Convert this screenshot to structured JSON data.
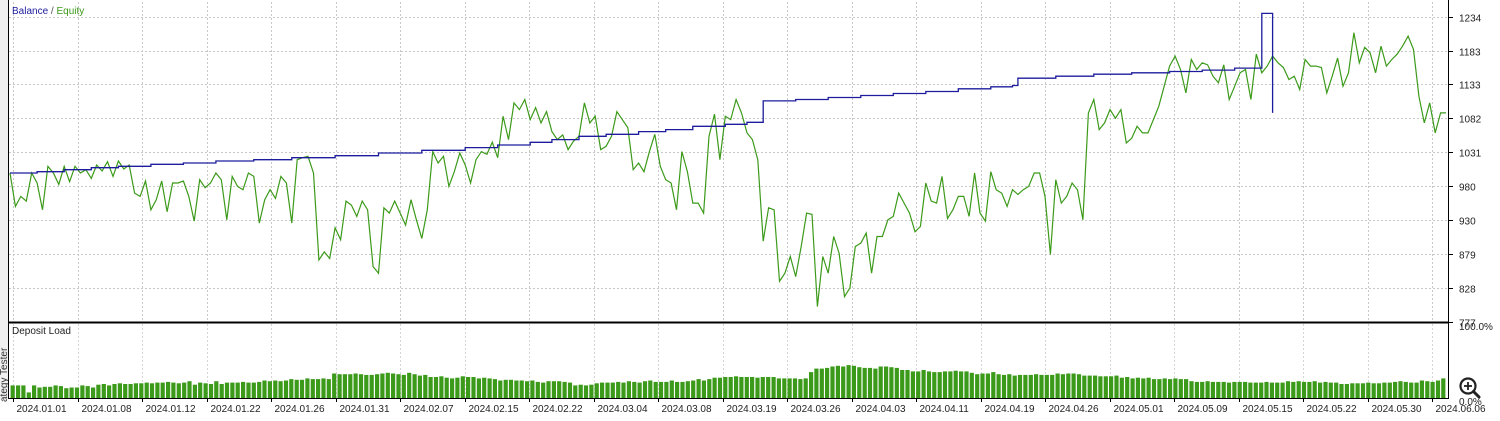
{
  "tester": {
    "side_label": "ategy Tester"
  },
  "toolbar": {
    "zoom_icon": "zoom-in-magnifier-icon"
  },
  "chart_data": [
    {
      "type": "line",
      "title": "",
      "legend": {
        "labels": [
          "Balance",
          "Equity"
        ],
        "separator": " / ",
        "position": "top-left"
      },
      "xlabel": "",
      "ylabel": "",
      "ylim": [
        777,
        1256
      ],
      "grid": true,
      "yticks": [
        1234,
        1183,
        1133,
        1082,
        1031,
        980,
        930,
        879,
        828,
        777
      ],
      "xticks": [
        "2024.01.01",
        "2024.01.08",
        "2024.01.12",
        "2024.01.22",
        "2024.01.26",
        "2024.01.31",
        "2024.02.07",
        "2024.02.15",
        "2024.02.22",
        "2024.03.04",
        "2024.03.08",
        "2024.03.19",
        "2024.03.26",
        "2024.04.03",
        "2024.04.11",
        "2024.04.19",
        "2024.04.26",
        "2024.05.01",
        "2024.05.09",
        "2024.05.15",
        "2024.05.22",
        "2024.05.30",
        "2024.06.06"
      ],
      "colors": {
        "Balance": "#1c1c9c",
        "Equity": "#3c9a1a"
      },
      "series": [
        {
          "name": "Balance",
          "points": [
            [
              0,
              1000
            ],
            [
              5,
              1002
            ],
            [
              10,
              1005
            ],
            [
              15,
              1008
            ],
            [
              20,
              1010
            ],
            [
              26,
              1013
            ],
            [
              32,
              1015
            ],
            [
              38,
              1018
            ],
            [
              45,
              1020
            ],
            [
              52,
              1023
            ],
            [
              60,
              1026
            ],
            [
              68,
              1030
            ],
            [
              76,
              1034
            ],
            [
              84,
              1038
            ],
            [
              90,
              1042
            ],
            [
              96,
              1046
            ],
            [
              100,
              1050
            ],
            [
              105,
              1055
            ],
            [
              110,
              1058
            ],
            [
              116,
              1062
            ],
            [
              121,
              1065
            ],
            [
              126,
              1070
            ],
            [
              132,
              1073
            ],
            [
              136,
              1076
            ],
            [
              139,
              1078
            ],
            [
              139,
              1108
            ],
            [
              145,
              1110
            ],
            [
              151,
              1113
            ],
            [
              157,
              1116
            ],
            [
              163,
              1119
            ],
            [
              169,
              1122
            ],
            [
              175,
              1126
            ],
            [
              181,
              1129
            ],
            [
              185,
              1131
            ],
            [
              186,
              1142
            ],
            [
              193,
              1145
            ],
            [
              200,
              1148
            ],
            [
              207,
              1150
            ],
            [
              214,
              1152
            ],
            [
              220,
              1154
            ],
            [
              226,
              1157
            ],
            [
              231,
              1239
            ],
            [
              232,
              1239
            ],
            [
              233,
              1090
            ]
          ]
        },
        {
          "name": "Equity",
          "values": [
            1000,
            950,
            965,
            958,
            1000,
            985,
            945,
            1010,
            1000,
            983,
            1010,
            987,
            1010,
            1000,
            1005,
            992,
            1012,
            1003,
            1017,
            995,
            1018,
            1006,
            1012,
            970,
            965,
            988,
            945,
            960,
            988,
            942,
            985,
            985,
            988,
            965,
            928,
            990,
            978,
            985,
            1000,
            990,
            930,
            995,
            980,
            975,
            1000,
            995,
            925,
            960,
            975,
            962,
            995,
            985,
            925,
            1020,
            1023,
            1025,
            1000,
            870,
            882,
            872,
            918,
            900,
            958,
            952,
            935,
            958,
            945,
            860,
            850,
            948,
            940,
            958,
            940,
            922,
            960,
            930,
            902,
            945,
            1032,
            1015,
            1025,
            980,
            1002,
            1030,
            1012,
            985,
            1020,
            1032,
            1028,
            1046,
            1023,
            1085,
            1050,
            1105,
            1095,
            1110,
            1080,
            1098,
            1075,
            1092,
            1062,
            1050,
            1057,
            1035,
            1048,
            1055,
            1105,
            1075,
            1085,
            1035,
            1040,
            1055,
            1092,
            1080,
            1068,
            1005,
            1015,
            1002,
            1032,
            1058,
            1010,
            990,
            985,
            945,
            1032,
            1002,
            955,
            955,
            940,
            1055,
            1088,
            1020,
            1085,
            1080,
            1110,
            1090,
            1060,
            1050,
            1020,
            898,
            948,
            945,
            838,
            850,
            875,
            845,
            890,
            940,
            938,
            800,
            875,
            850,
            905,
            880,
            815,
            828,
            890,
            895,
            910,
            850,
            905,
            905,
            930,
            935,
            970,
            955,
            940,
            912,
            920,
            985,
            958,
            955,
            995,
            932,
            945,
            965,
            965,
            935,
            1000,
            940,
            928,
            1002,
            975,
            970,
            950,
            975,
            968,
            975,
            980,
            1000,
            1000,
            965,
            878,
            990,
            955,
            965,
            985,
            975,
            930,
            1090,
            1110,
            1065,
            1075,
            1095,
            1082,
            1095,
            1045,
            1052,
            1070,
            1060,
            1060,
            1080,
            1100,
            1130,
            1160,
            1175,
            1155,
            1120,
            1170,
            1155,
            1165,
            1162,
            1145,
            1135,
            1162,
            1110,
            1130,
            1150,
            1155,
            1110,
            1178,
            1150,
            1160,
            1175,
            1165,
            1158,
            1140,
            1145,
            1125,
            1170,
            1160,
            1160,
            1158,
            1120,
            1145,
            1172,
            1130,
            1150,
            1210,
            1165,
            1188,
            1180,
            1150,
            1190,
            1160,
            1170,
            1178,
            1190,
            1205,
            1185,
            1115,
            1075,
            1105,
            1060,
            1090,
            1090
          ]
        }
      ]
    },
    {
      "type": "bar",
      "title": "Deposit Load",
      "ylim": [
        0,
        100
      ],
      "yticks": [
        "100.0%",
        "0.0%"
      ],
      "colors": {
        "bar": "#3c9a1a"
      },
      "series": [
        {
          "name": "Deposit Load",
          "values": [
            18,
            18,
            18,
            8,
            18,
            15,
            16,
            16,
            18,
            17,
            14,
            15,
            15,
            18,
            17,
            15,
            19,
            20,
            18,
            20,
            21,
            20,
            20,
            21,
            21,
            22,
            21,
            22,
            22,
            23,
            22,
            21,
            22,
            24,
            19,
            22,
            21,
            20,
            24,
            20,
            22,
            22,
            22,
            23,
            22,
            22,
            23,
            25,
            24,
            25,
            24,
            25,
            27,
            26,
            26,
            28,
            27,
            27,
            28,
            27,
            35,
            34,
            34,
            34,
            35,
            34,
            33,
            33,
            34,
            35,
            36,
            35,
            34,
            33,
            36,
            34,
            32,
            33,
            30,
            30,
            31,
            29,
            28,
            29,
            31,
            30,
            30,
            28,
            29,
            28,
            27,
            25,
            26,
            26,
            25,
            25,
            24,
            25,
            23,
            22,
            24,
            24,
            24,
            23,
            22,
            18,
            19,
            18,
            19,
            21,
            22,
            22,
            22,
            23,
            22,
            24,
            23,
            22,
            24,
            25,
            23,
            23,
            23,
            25,
            23,
            23,
            24,
            25,
            27,
            25,
            27,
            29,
            29,
            30,
            30,
            31,
            30,
            30,
            30,
            29,
            30,
            30,
            30,
            28,
            28,
            28,
            28,
            27,
            28,
            37,
            42,
            42,
            43,
            45,
            46,
            45,
            47,
            46,
            44,
            43,
            43,
            42,
            45,
            45,
            44,
            43,
            40,
            40,
            38,
            38,
            40,
            38,
            37,
            37,
            38,
            38,
            39,
            38,
            38,
            36,
            34,
            35,
            35,
            37,
            34,
            33,
            34,
            32,
            33,
            33,
            33,
            34,
            33,
            33,
            33,
            35,
            34,
            35,
            35,
            34,
            32,
            32,
            32,
            31,
            31,
            31,
            32,
            29,
            30,
            28,
            29,
            28,
            29,
            27,
            27,
            28,
            27,
            28,
            27,
            27,
            24,
            23,
            23,
            24,
            23,
            23,
            23,
            22,
            23,
            23,
            23,
            22,
            22,
            22,
            23,
            22,
            22,
            22,
            24,
            23,
            24,
            23,
            23,
            24,
            22,
            23,
            22,
            22,
            20,
            20,
            21,
            21,
            21,
            22,
            21,
            21,
            22,
            22,
            23,
            24,
            23,
            22,
            22,
            25,
            24,
            23,
            25,
            28
          ]
        }
      ]
    }
  ]
}
